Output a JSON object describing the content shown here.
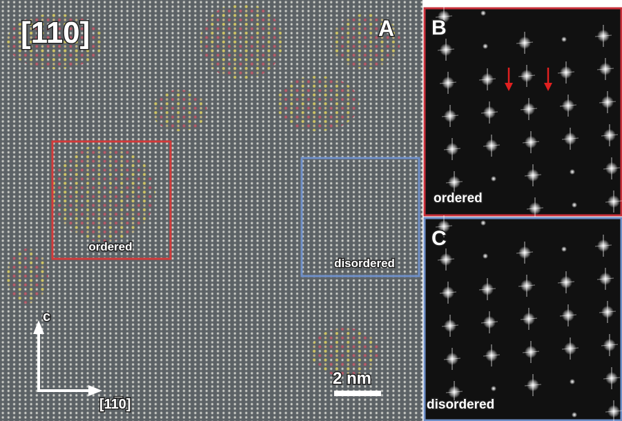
{
  "panel_a": {
    "label": "A",
    "zone_axis": "[110]",
    "ordered_box_label": "ordered",
    "disordered_box_label": "disordered",
    "axis_up": "c",
    "axis_right": "[11̅0]",
    "scale_bar": "2 nm"
  },
  "panel_b": {
    "label": "B",
    "caption": "ordered"
  },
  "panel_c": {
    "label": "C",
    "caption": "disordered"
  }
}
